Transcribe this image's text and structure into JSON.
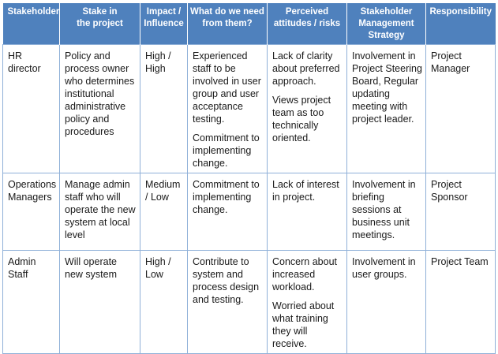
{
  "headers": [
    "Stakeholder",
    "Stake in\nthe project",
    "Impact /\nInfluence",
    "What do we need\nfrom them?",
    "Perceived\nattitudes / risks",
    "Stakeholder\nManagement\nStrategy",
    "Responsibility"
  ],
  "rows": [
    {
      "stakeholder": "HR director",
      "stake": "Policy and process owner who determines institutional administrative policy and procedures",
      "impact": "High / High",
      "need": [
        "Experienced staff to be involved in user group and user acceptance testing.",
        "Commitment to implementing change."
      ],
      "attitudes": [
        "Lack of clarity about preferred approach.",
        "Views project team as too technically oriented."
      ],
      "strategy": "Involvement in Project Steering Board, Regular updating meeting with project leader.",
      "responsibility": "Project Manager"
    },
    {
      "stakeholder": "Operations Managers",
      "stake": "Manage admin staff who will operate the new system at local level",
      "impact": "Medium / Low",
      "need": [
        "Commitment to implementing change."
      ],
      "attitudes": [
        "Lack of interest in project."
      ],
      "strategy": "Involvement in briefing sessions at business unit meetings.",
      "responsibility": "Project Sponsor"
    },
    {
      "stakeholder": "Admin Staff",
      "stake": "Will operate new system",
      "impact": "High / Low",
      "need": [
        "Contribute to system and process design and testing."
      ],
      "attitudes": [
        "Concern about increased workload.",
        "Worried about what training they will receive."
      ],
      "strategy": "Involvement in user groups.",
      "responsibility": "Project Team"
    }
  ]
}
